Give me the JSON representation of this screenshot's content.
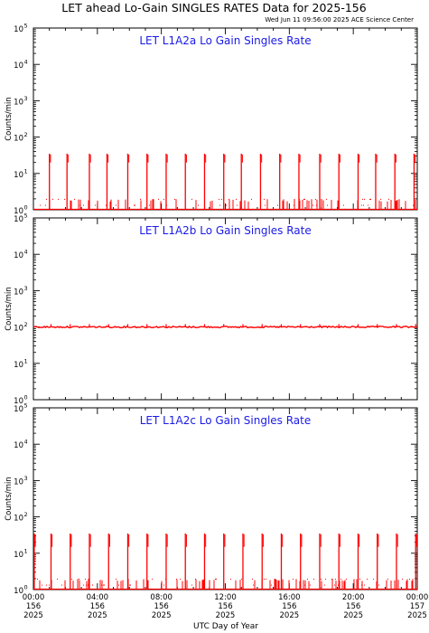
{
  "header": {
    "title": "LET ahead Lo-Gain SINGLES RATES Data for 2025-156",
    "timestamp": "Wed Jun 11 09:56:00 2025 ACE Science Center"
  },
  "colors": {
    "data": "#ff0000",
    "panel_title": "#1a1ae6",
    "axis": "#000000"
  },
  "chart_data": [
    {
      "type": "line",
      "title": "LET L1A2a Lo Gain Singles Rate",
      "xlabel": "UTC Day of Year",
      "ylabel": "Counts/min",
      "yscale": "log",
      "ylim": [
        1,
        100000
      ],
      "y_ticks": [
        "10",
        "10",
        "10",
        "10",
        "10",
        "10"
      ],
      "y_tick_exponents": [
        "0",
        "1",
        "2",
        "3",
        "4",
        "5"
      ],
      "xlim": [
        0,
        24
      ],
      "baseline_value": 1,
      "typical_noise_max": 2,
      "spike_hours": [
        1.0,
        2.1,
        3.5,
        4.6,
        5.9,
        7.1,
        8.3,
        9.5,
        10.7,
        11.9,
        13.0,
        14.2,
        15.4,
        16.6,
        17.9,
        19.1,
        20.3,
        21.4,
        22.6,
        23.8
      ],
      "spike_peak_value": 35,
      "spike_shoulder_value": 20,
      "grid": false
    },
    {
      "type": "line",
      "title": "LET L1A2b Lo Gain Singles Rate",
      "xlabel": "UTC Day of Year",
      "ylabel": "Counts/min",
      "yscale": "log",
      "ylim": [
        1,
        100000
      ],
      "y_ticks": [
        "10",
        "10",
        "10",
        "10",
        "10",
        "10"
      ],
      "y_tick_exponents": [
        "0",
        "1",
        "2",
        "3",
        "4",
        "5"
      ],
      "xlim": [
        0,
        24
      ],
      "baseline_value": 100,
      "spike_hours": [
        1.1,
        2.3,
        3.5,
        4.7,
        5.9,
        7.1,
        8.3,
        9.5,
        10.7,
        11.9,
        13.1,
        14.3,
        15.5,
        16.7,
        17.9,
        19.1,
        20.3,
        21.5,
        22.7,
        23.9
      ],
      "spike_peak_value": 120,
      "grid": false
    },
    {
      "type": "line",
      "title": "LET L1A2c Lo Gain Singles Rate",
      "xlabel": "UTC Day of Year",
      "ylabel": "Counts/min",
      "yscale": "log",
      "ylim": [
        1,
        100000
      ],
      "y_ticks": [
        "10",
        "10",
        "10",
        "10",
        "10",
        "10"
      ],
      "y_tick_exponents": [
        "0",
        "1",
        "2",
        "3",
        "4",
        "5"
      ],
      "xlim": [
        0,
        24
      ],
      "baseline_value": 1,
      "typical_noise_max": 2,
      "spike_hours": [
        0.05,
        1.1,
        2.3,
        3.5,
        4.7,
        5.9,
        7.1,
        8.3,
        9.5,
        10.7,
        11.9,
        13.1,
        14.3,
        15.5,
        16.7,
        17.9,
        19.1,
        20.3,
        21.5,
        22.7,
        23.9
      ],
      "spike_peak_value": 35,
      "spike_shoulder_value": 15,
      "grid": false
    }
  ],
  "x_axis": {
    "label": "UTC Day of Year",
    "ticks": [
      {
        "hour": 0,
        "time": "00:00",
        "doy": "156",
        "year": "2025"
      },
      {
        "hour": 4,
        "time": "04:00",
        "doy": "156",
        "year": "2025"
      },
      {
        "hour": 8,
        "time": "08:00",
        "doy": "156",
        "year": "2025"
      },
      {
        "hour": 12,
        "time": "12:00",
        "doy": "156",
        "year": "2025"
      },
      {
        "hour": 16,
        "time": "16:00",
        "doy": "156",
        "year": "2025"
      },
      {
        "hour": 20,
        "time": "20:00",
        "doy": "156",
        "year": "2025"
      },
      {
        "hour": 24,
        "time": "00:00",
        "doy": "157",
        "year": "2025"
      }
    ]
  }
}
